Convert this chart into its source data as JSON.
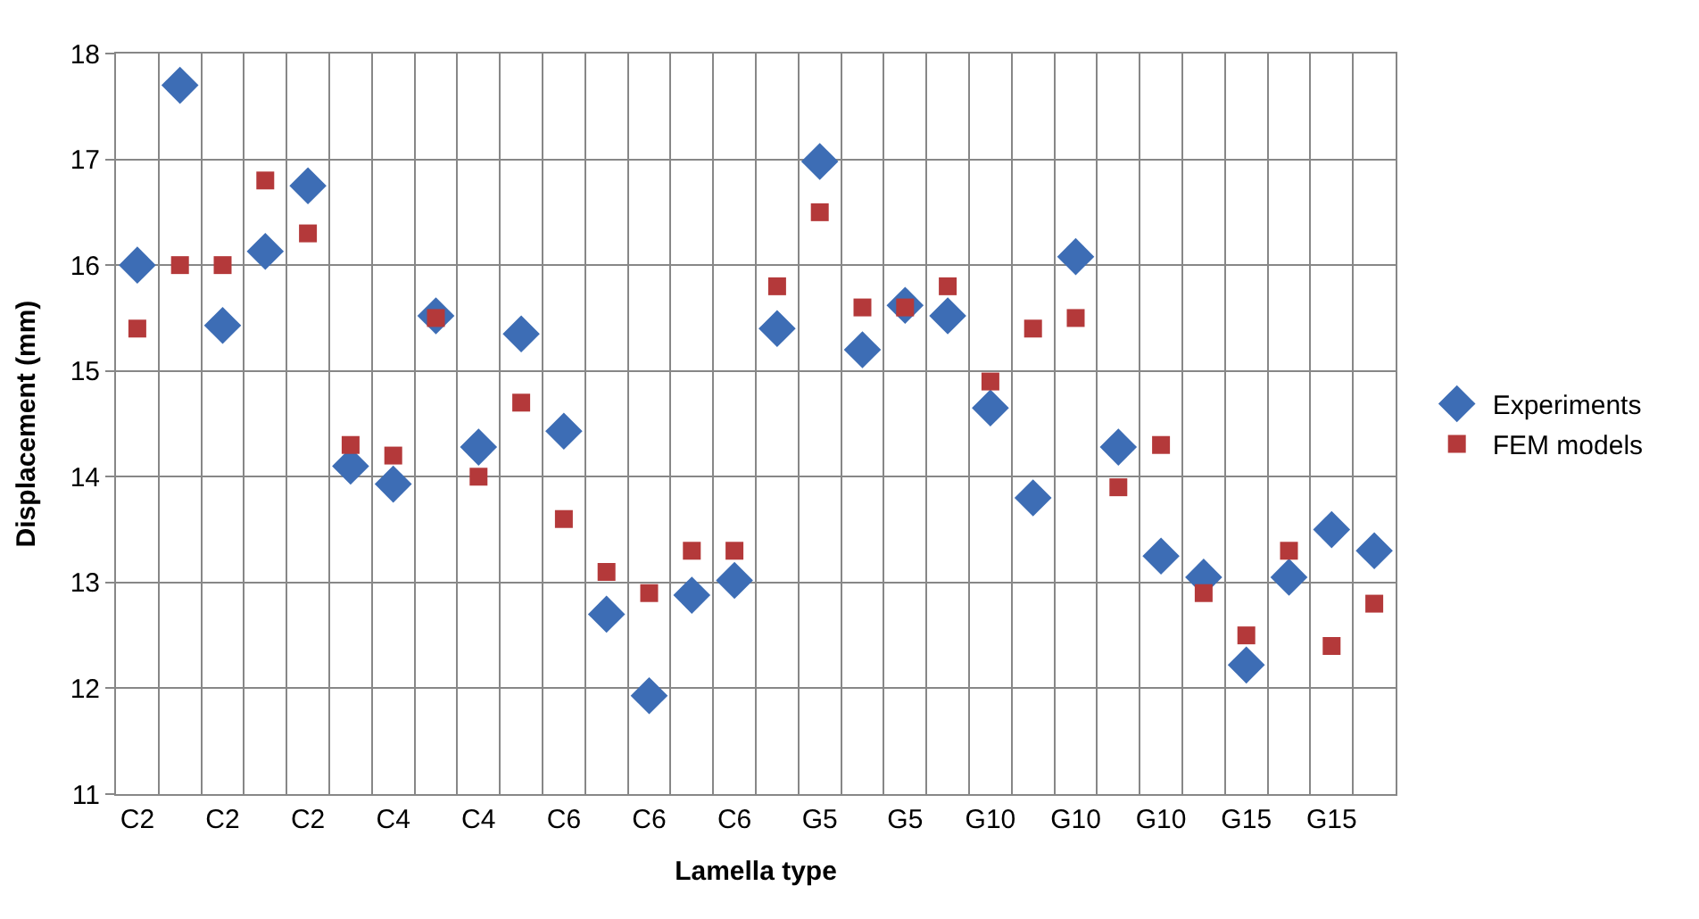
{
  "chart_data": {
    "type": "scatter",
    "xlabel": "Lamella type",
    "ylabel": "Displacement (mm)",
    "categories": [
      "C2",
      null,
      "C2",
      null,
      "C2",
      null,
      "C4",
      null,
      "C4",
      null,
      "C6",
      null,
      "C6",
      null,
      "C6",
      null,
      "G5",
      null,
      "G5",
      null,
      "G10",
      null,
      "G10",
      null,
      "G10",
      null,
      "G15",
      null,
      "G15",
      null
    ],
    "series": [
      {
        "name": "Experiments",
        "color": "#3d6db5",
        "marker": "diamond",
        "values": [
          16.0,
          17.7,
          15.43,
          16.13,
          16.75,
          14.1,
          13.93,
          15.52,
          14.28,
          15.35,
          14.43,
          12.7,
          11.93,
          12.88,
          13.02,
          15.4,
          16.98,
          15.2,
          15.62,
          15.52,
          14.65,
          13.8,
          16.08,
          14.28,
          13.25,
          13.05,
          12.22,
          13.05,
          13.5,
          13.3
        ]
      },
      {
        "name": "FEM models",
        "color": "#b4393a",
        "marker": "square",
        "values": [
          15.4,
          16.0,
          16.0,
          16.8,
          16.3,
          14.3,
          14.2,
          15.5,
          14.0,
          14.7,
          13.6,
          13.1,
          12.9,
          13.3,
          13.3,
          15.8,
          16.5,
          15.6,
          15.6,
          15.8,
          14.9,
          15.4,
          15.5,
          13.9,
          14.3,
          12.9,
          12.5,
          13.3,
          12.4,
          12.8
        ]
      }
    ],
    "ylim": [
      11,
      18
    ],
    "yticks": [
      11,
      12,
      13,
      14,
      15,
      16,
      17,
      18
    ],
    "grid": true,
    "legend": "right"
  }
}
